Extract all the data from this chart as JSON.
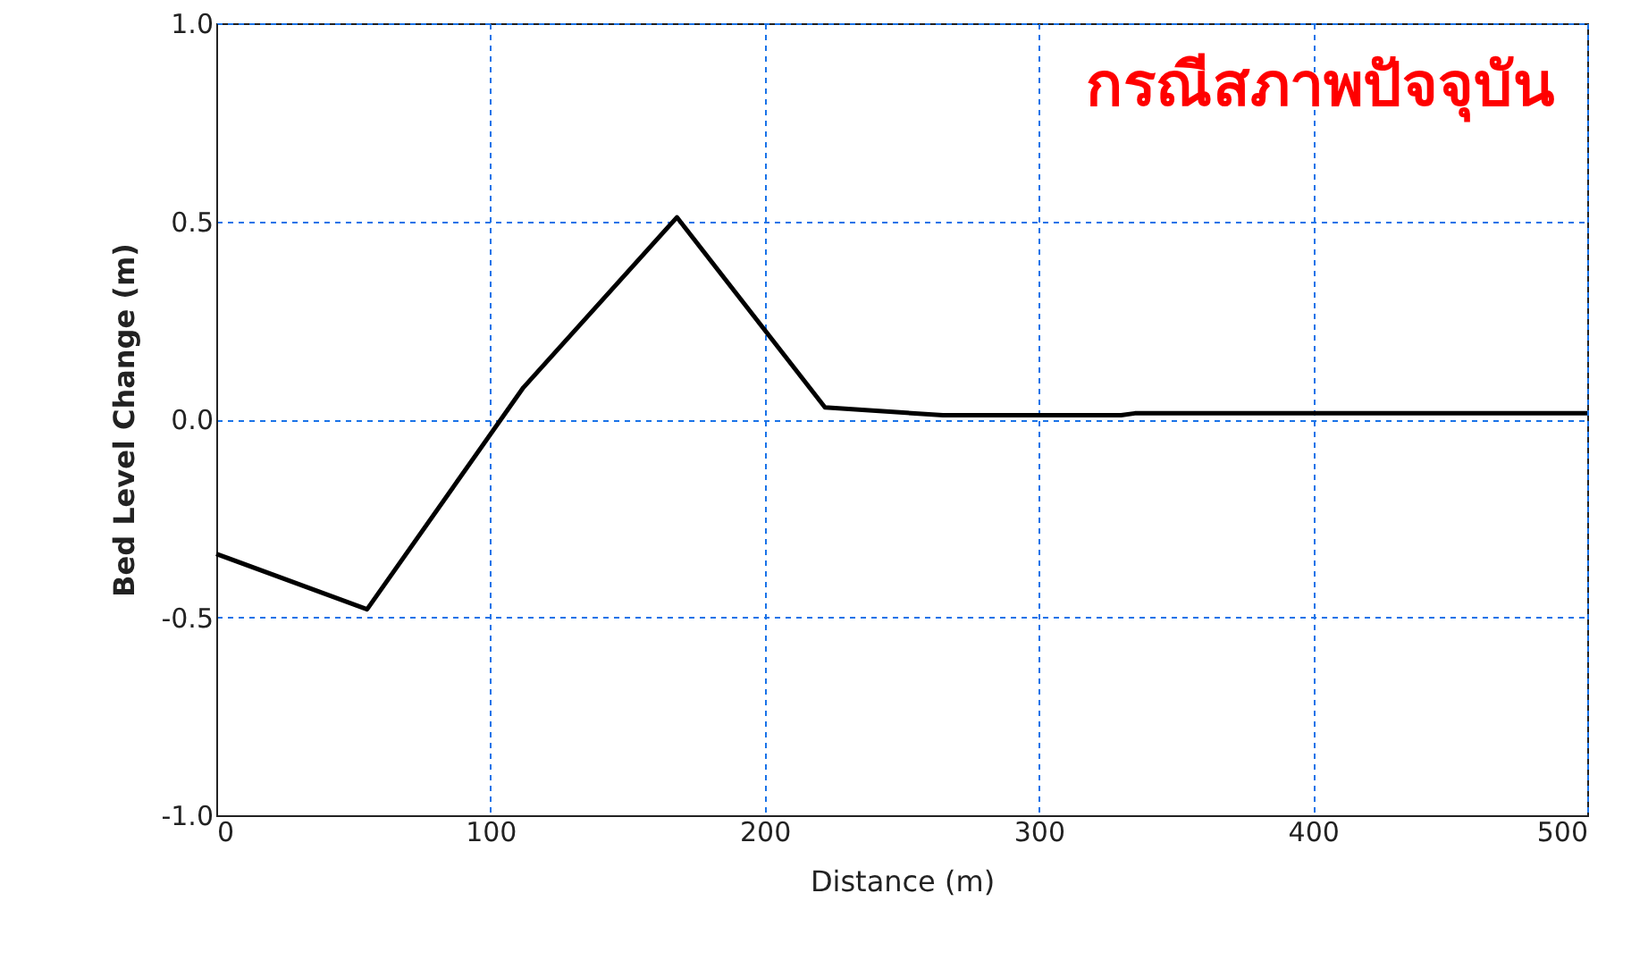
{
  "chart_data": {
    "type": "line",
    "title": "กรณีสภาพปัจจุบัน",
    "xlabel": "Distance (m)",
    "ylabel": "Bed Level Change (m)",
    "x": [
      0,
      55,
      112,
      168,
      222,
      265,
      330,
      335,
      500
    ],
    "series": [
      {
        "color": "#000000",
        "values": [
          -0.34,
          -0.48,
          0.08,
          0.51,
          0.03,
          0.01,
          0.01,
          0.015,
          0.015
        ]
      }
    ],
    "xlim": [
      0,
      500
    ],
    "xticks": [
      0,
      100,
      200,
      300,
      400,
      500
    ],
    "ylim": [
      -1,
      1
    ],
    "yticks": [
      {
        "value": -1,
        "label": "-1.0"
      },
      {
        "value": -0.5,
        "label": "-0.5"
      },
      {
        "value": 0,
        "label": "0.0"
      },
      {
        "value": 0.5,
        "label": "0.5"
      },
      {
        "value": 1,
        "label": "1.0"
      }
    ],
    "grid": true,
    "line_style": "solid",
    "marker": "none"
  }
}
